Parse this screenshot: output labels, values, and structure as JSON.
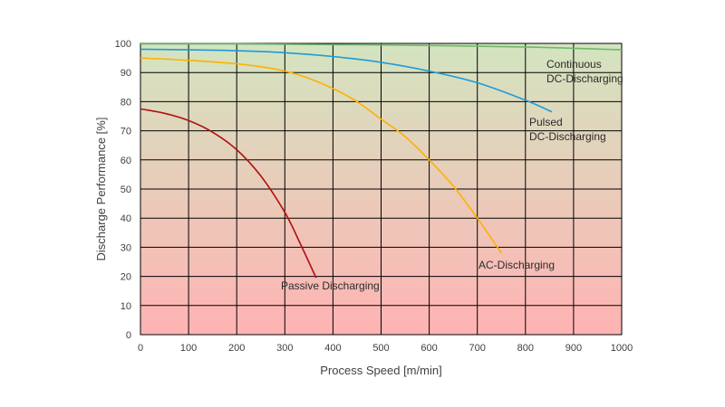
{
  "chart_data": {
    "type": "line",
    "title": "",
    "xlabel": "Process Speed [m/min]",
    "ylabel": "Discharge Performance [%]",
    "xlim": [
      0,
      1000
    ],
    "ylim": [
      0,
      100
    ],
    "x_ticks": [
      0,
      100,
      200,
      300,
      400,
      500,
      600,
      700,
      800,
      900,
      1000
    ],
    "y_ticks": [
      0,
      10,
      20,
      30,
      40,
      50,
      60,
      70,
      80,
      90,
      100
    ],
    "grid": true,
    "background_gradient": [
      "#d3e4c0",
      "#ffb3b3"
    ],
    "series": [
      {
        "name": "Passive Discharging",
        "label_lines": [
          "Passive Discharging"
        ],
        "color": "#b01010",
        "x": [
          0,
          50,
          100,
          150,
          200,
          250,
          300,
          330,
          365
        ],
        "y": [
          77.5,
          76,
          73.5,
          69.5,
          63.5,
          54.5,
          42,
          32,
          19.5
        ]
      },
      {
        "name": "AC-Discharging",
        "label_lines": [
          "AC-Discharging"
        ],
        "color": "#ffb000",
        "x": [
          0,
          100,
          200,
          250,
          300,
          350,
          400,
          450,
          500,
          550,
          600,
          650,
          700,
          750
        ],
        "y": [
          95,
          94.2,
          93,
          92,
          90.5,
          88,
          84.5,
          80,
          74,
          68,
          60,
          51,
          40,
          28
        ]
      },
      {
        "name": "Pulsed DC-Discharging",
        "label_lines": [
          "Pulsed",
          "DC-Discharging"
        ],
        "color": "#1e9bd7",
        "x": [
          0,
          100,
          200,
          300,
          400,
          500,
          600,
          700,
          800,
          855
        ],
        "y": [
          98,
          97.8,
          97.5,
          96.8,
          95.5,
          93.5,
          90.5,
          86.5,
          80.5,
          76.5
        ]
      },
      {
        "name": "Continuous DC-Discharging",
        "label_lines": [
          "Continuous",
          "DC-Discharging"
        ],
        "color": "#70b86a",
        "x": [
          0,
          200,
          400,
          600,
          800,
          1000
        ],
        "y": [
          99.8,
          99.8,
          99.6,
          99.3,
          98.8,
          97.8
        ]
      }
    ]
  }
}
